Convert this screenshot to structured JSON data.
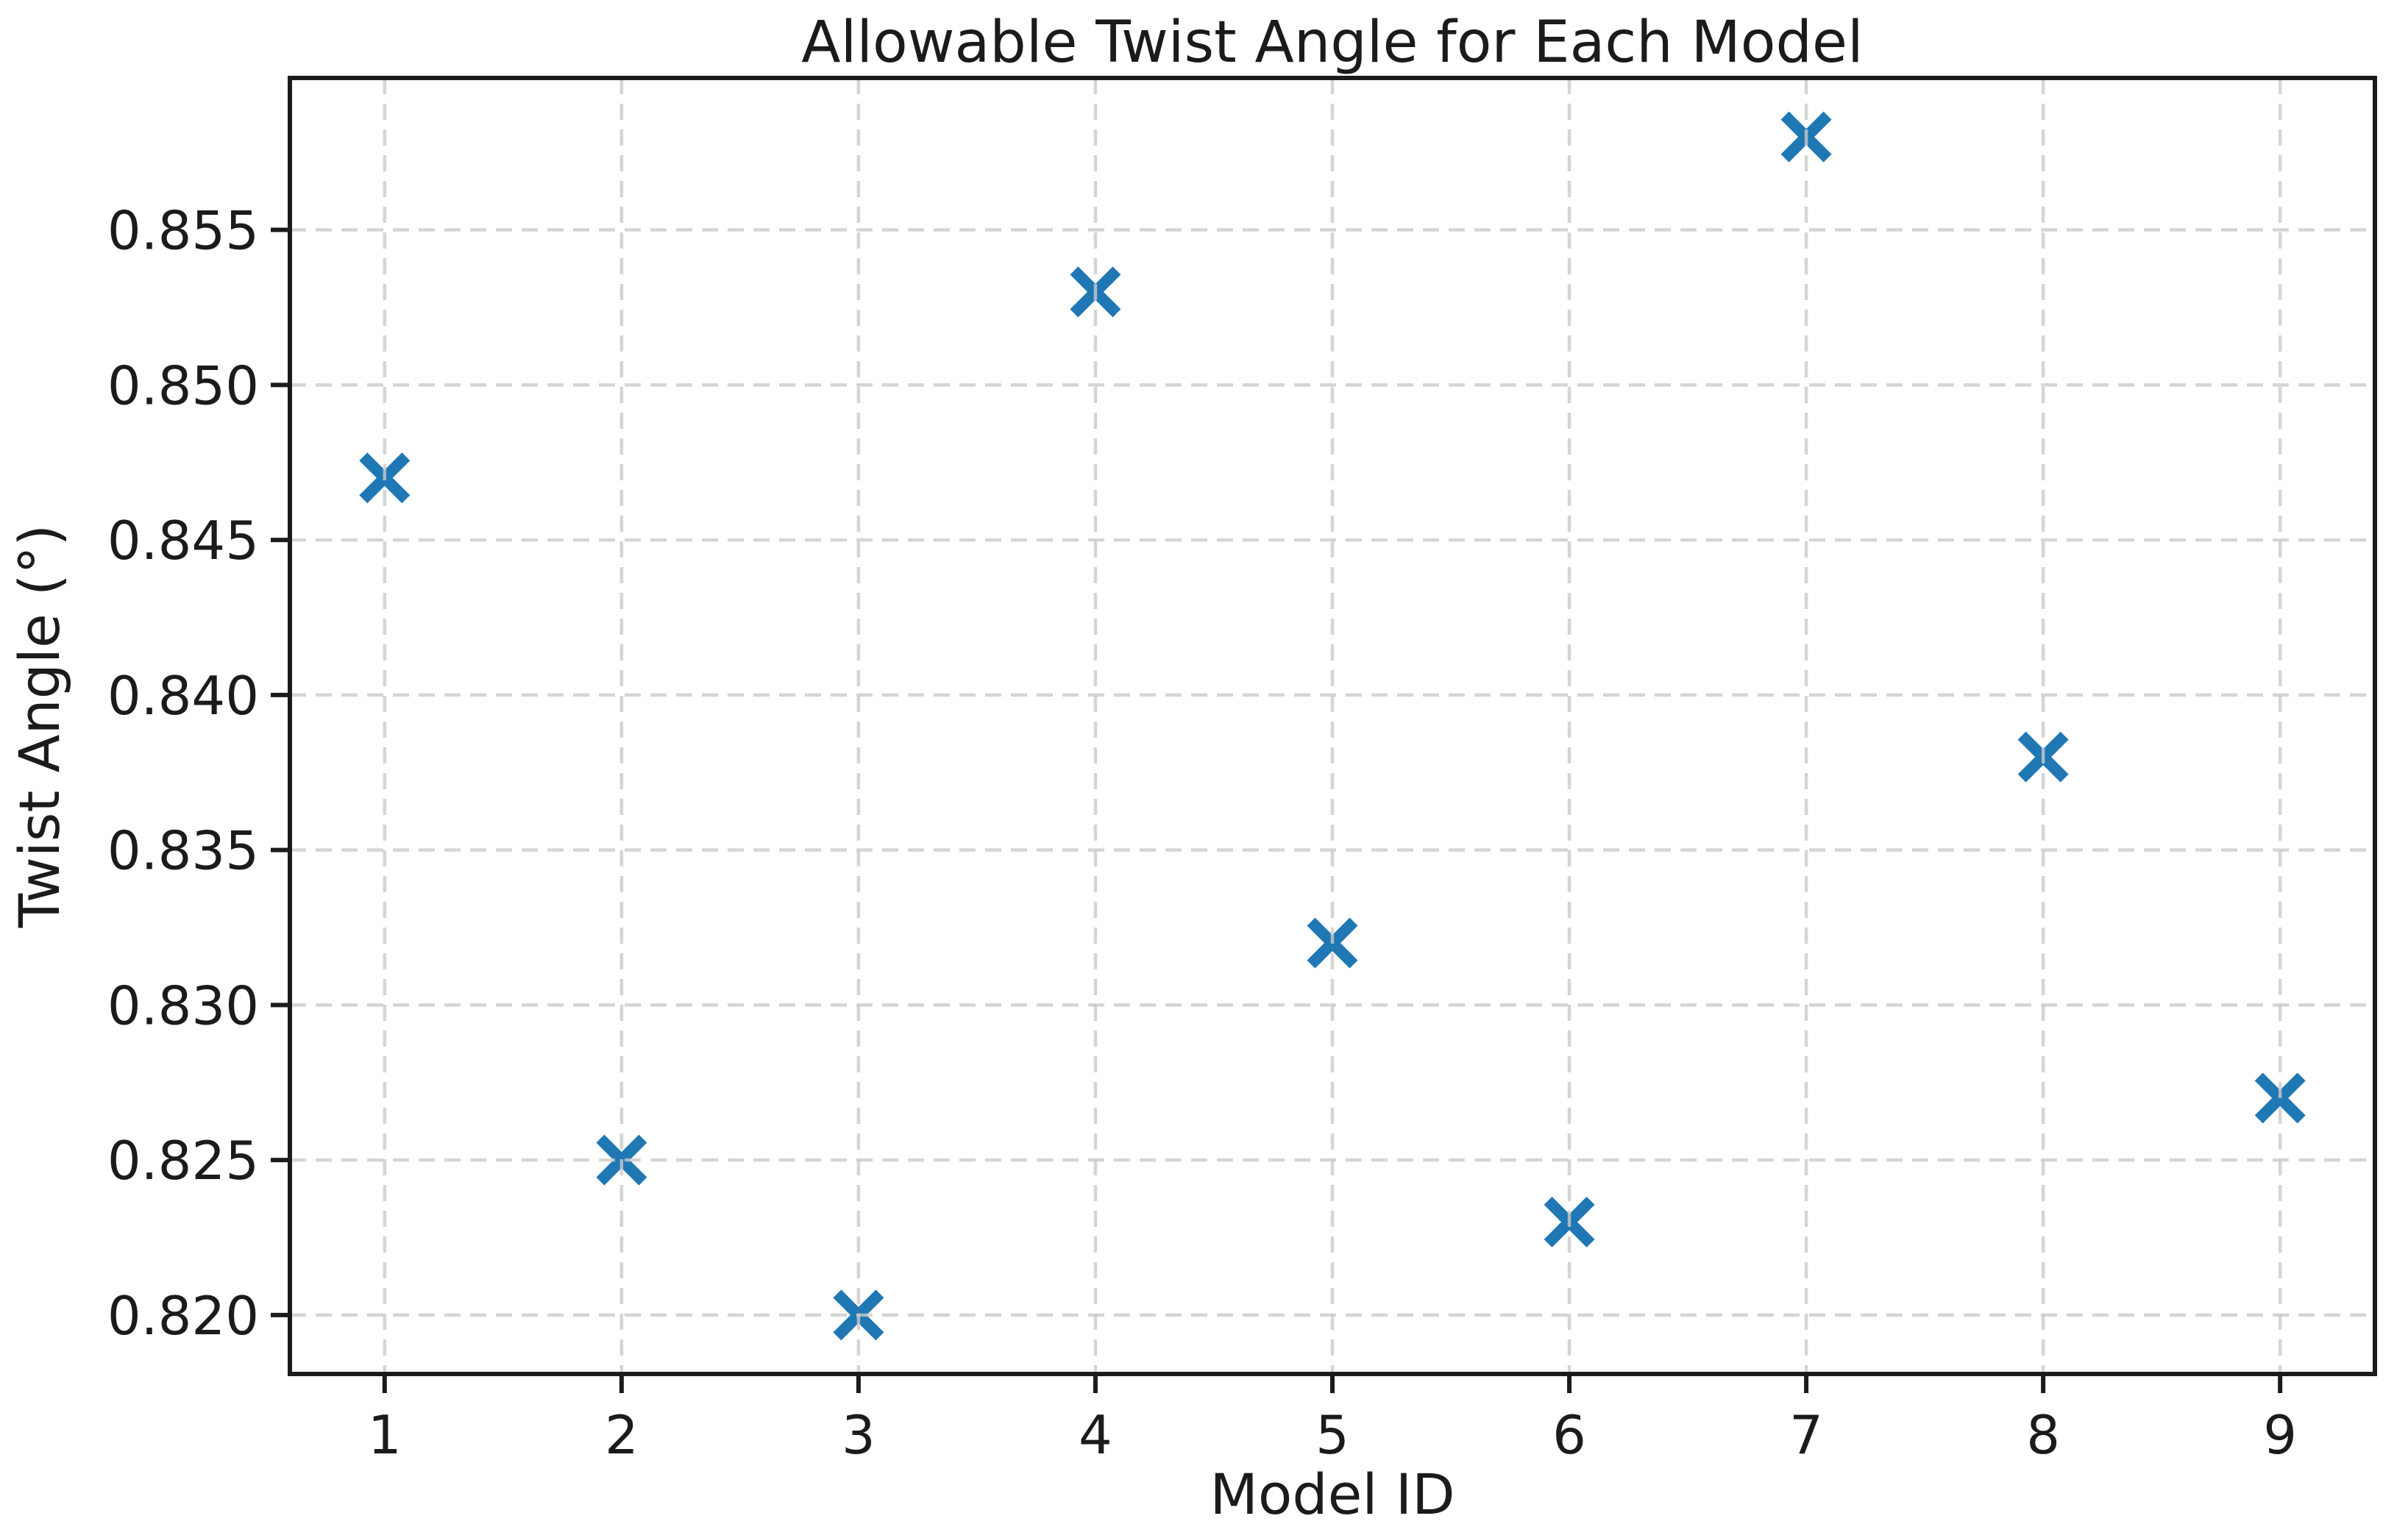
{
  "chart_data": {
    "type": "scatter",
    "title": "Allowable Twist Angle for Each Model",
    "xlabel": "Model ID",
    "ylabel": "Twist Angle (°)",
    "x": [
      1,
      2,
      3,
      4,
      5,
      6,
      7,
      8,
      9
    ],
    "y": [
      0.847,
      0.825,
      0.82,
      0.853,
      0.832,
      0.823,
      0.858,
      0.838,
      0.827
    ],
    "xticks": [
      1,
      2,
      3,
      4,
      5,
      6,
      7,
      8,
      9
    ],
    "yticks": [
      0.82,
      0.825,
      0.83,
      0.835,
      0.84,
      0.845,
      0.85,
      0.855
    ],
    "xlim": [
      0.6,
      9.4
    ],
    "ylim": [
      0.8181,
      0.8599
    ],
    "grid": true,
    "grid_linestyle": "dashed",
    "legend": "none",
    "marker": "X",
    "marker_color": "#1f77b4",
    "grid_color": "#cbcbcb",
    "axis_color": "#1b1b1b",
    "background_color": "#ffffff",
    "ytick_decimals": 3
  }
}
